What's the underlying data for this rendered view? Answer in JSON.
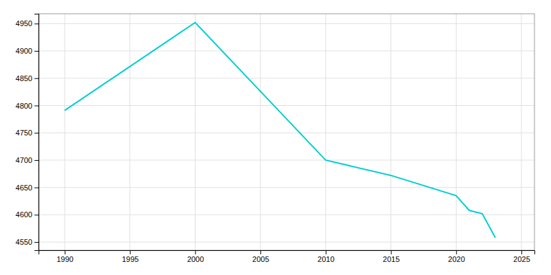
{
  "chart_data": {
    "type": "line",
    "x": [
      1990,
      2000,
      2010,
      2015,
      2020,
      2021,
      2022,
      2023
    ],
    "values": [
      4791,
      4952,
      4700,
      4672,
      4635,
      4608,
      4602,
      4558
    ],
    "color": "#00CED1",
    "xlim": [
      1988,
      2026
    ],
    "ylim": [
      4535,
      4968
    ],
    "xticks": [
      1990,
      1995,
      2000,
      2005,
      2010,
      2015,
      2020,
      2025
    ],
    "yticks": [
      4550,
      4600,
      4650,
      4700,
      4750,
      4800,
      4850,
      4900,
      4950
    ],
    "grid": true
  }
}
